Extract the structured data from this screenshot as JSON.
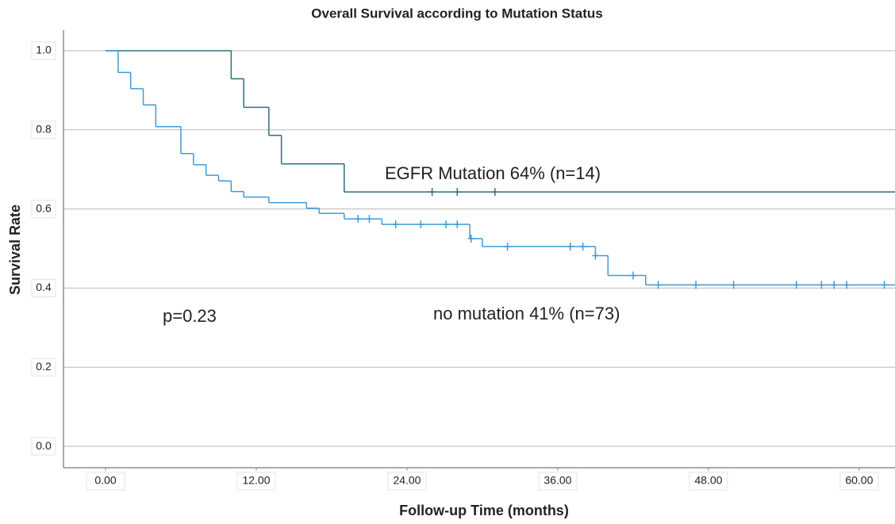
{
  "chart_data": {
    "type": "kaplan-meier",
    "title": "Overall Survival according to Mutation Status",
    "x_label": "Follow-up Time (months)",
    "y_label": "Survival Rate",
    "annotations": [
      "EGFR Mutation 64% (n=14)",
      "no mutation 41% (n=73)",
      "p=0.23"
    ],
    "xlim": [
      -3.35,
      62.85
    ],
    "ylim": [
      -0.054,
      1.052
    ],
    "xticks": [
      {
        "value": 0,
        "label": "0.00"
      },
      {
        "value": 12,
        "label": "12.00"
      },
      {
        "value": 24,
        "label": "24.00"
      },
      {
        "value": 36,
        "label": "36.00"
      },
      {
        "value": 48,
        "label": "48.00"
      },
      {
        "value": 60,
        "label": "60.00"
      }
    ],
    "yticks": [
      {
        "value": 0,
        "label": "0.0"
      },
      {
        "value": 0.2,
        "label": "0.2"
      },
      {
        "value": 0.4,
        "label": "0.4"
      },
      {
        "value": 0.6,
        "label": "0.6"
      },
      {
        "value": 0.8,
        "label": "0.8"
      },
      {
        "value": 1,
        "label": "1.0"
      }
    ],
    "grid": true,
    "series": [
      {
        "color": "#2f6f78",
        "x": [
          0,
          10,
          11,
          13,
          14,
          19
        ],
        "values": [
          1,
          0.929,
          0.857,
          0.786,
          0.714,
          0.643
        ],
        "censored": [
          26,
          28,
          31
        ]
      },
      {
        "color": "#3b9bd8",
        "x": [
          0,
          1,
          2,
          3,
          4,
          6,
          7,
          8,
          9,
          10,
          11,
          13,
          16,
          17,
          19,
          22,
          29,
          30,
          39,
          40,
          43
        ],
        "values": [
          1,
          0.945,
          0.904,
          0.863,
          0.808,
          0.74,
          0.712,
          0.685,
          0.671,
          0.644,
          0.63,
          0.616,
          0.602,
          0.589,
          0.575,
          0.561,
          0.525,
          0.505,
          0.482,
          0.432,
          0.408
        ],
        "censored": [
          20.1,
          21,
          23.1,
          25.1,
          27.1,
          28,
          29.1,
          32,
          37,
          38,
          39,
          42,
          44,
          47,
          50,
          55,
          57,
          58,
          59,
          62
        ]
      }
    ]
  }
}
